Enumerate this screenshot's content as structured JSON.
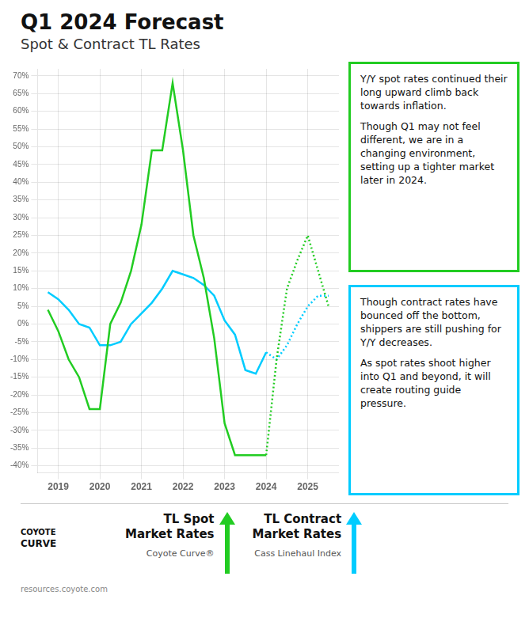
{
  "chart_data": {
    "type": "line",
    "title": "Q1 2024 Forecast",
    "subtitle": "Spot & Contract TL Rates",
    "xlim": [
      2018.5,
      2025.75
    ],
    "xticks": [
      2019,
      2020,
      2021,
      2022,
      2023,
      2024,
      2025
    ],
    "ylim": [
      -42,
      72
    ],
    "yticks": [
      {
        "value": -40,
        "label": "-40%"
      },
      {
        "value": -35,
        "label": "-35%"
      },
      {
        "value": -30,
        "label": "-30%"
      },
      {
        "value": -25,
        "label": "-25%"
      },
      {
        "value": -20,
        "label": "-20%"
      },
      {
        "value": -15,
        "label": "-15%"
      },
      {
        "value": -10,
        "label": "-10%"
      },
      {
        "value": -5,
        "label": "-5%"
      },
      {
        "value": 0,
        "label": "0%"
      },
      {
        "value": 5,
        "label": "5%"
      },
      {
        "value": 10,
        "label": "10%"
      },
      {
        "value": 15,
        "label": "15%"
      },
      {
        "value": 20,
        "label": "20%"
      },
      {
        "value": 25,
        "label": "25%"
      },
      {
        "value": 30,
        "label": "30%"
      },
      {
        "value": 35,
        "label": "35%"
      },
      {
        "value": 40,
        "label": "40%"
      },
      {
        "value": 45,
        "label": "45%"
      },
      {
        "value": 50,
        "label": "50%"
      },
      {
        "value": 55,
        "label": "55%"
      },
      {
        "value": 60,
        "label": "60%"
      },
      {
        "value": 65,
        "label": "65%"
      },
      {
        "value": 70,
        "label": "70%"
      }
    ],
    "grid": true,
    "legend": "bottom",
    "series": [
      {
        "name": "TL Spot\nMarket Rates",
        "source": "Coyote Curve®",
        "color": "#22cc22",
        "line_style": "solid",
        "x": [
          2018.75,
          2019.0,
          2019.25,
          2019.5,
          2019.75,
          2020.0,
          2020.25,
          2020.5,
          2020.75,
          2021.0,
          2021.25,
          2021.5,
          2021.75,
          2022.0,
          2022.25,
          2022.5,
          2022.75,
          2023.0,
          2023.25,
          2023.5,
          2023.75,
          2024.0
        ],
        "values": [
          4,
          -2,
          -10,
          -15,
          -24,
          -24,
          0,
          6,
          15,
          28,
          49,
          49,
          68,
          49,
          25,
          13,
          -4,
          -28,
          -37,
          -37,
          -37,
          -37
        ]
      },
      {
        "name": "TL Contract\nMarket Rates",
        "source": "Cass Linehaul Index",
        "color": "#00ccff",
        "line_style": "solid",
        "x": [
          2018.75,
          2019.0,
          2019.25,
          2019.5,
          2019.75,
          2020.0,
          2020.25,
          2020.5,
          2020.75,
          2021.0,
          2021.25,
          2021.5,
          2021.75,
          2022.0,
          2022.25,
          2022.5,
          2022.75,
          2023.0,
          2023.25,
          2023.5,
          2023.75,
          2024.0
        ],
        "values": [
          9,
          7,
          4,
          0,
          -1,
          -6,
          -6,
          -5,
          0,
          3,
          6,
          10,
          15,
          14,
          13,
          11,
          8,
          1,
          -3,
          -13,
          -14,
          -8
        ]
      },
      {
        "color": "#22cc22",
        "line_style": "dotted",
        "x": [
          2024.0,
          2024.25,
          2024.5,
          2024.75,
          2025.0,
          2025.25,
          2025.5
        ],
        "values": [
          -37,
          -10,
          10,
          18,
          25,
          15,
          5
        ]
      },
      {
        "color": "#00ccff",
        "line_style": "dotted",
        "x": [
          2024.0,
          2024.25,
          2024.5,
          2024.75,
          2025.0,
          2025.25,
          2025.5
        ],
        "values": [
          -8,
          -10,
          -6,
          0,
          5,
          8,
          8
        ]
      }
    ],
    "annotations": [
      {
        "color": "#22cc22",
        "text": [
          "Y/Y spot rates continued their long upward climb back towards inflation.",
          "Though Q1 may not feel different, we are in a changing environment, setting up a tighter market later in 2024."
        ]
      },
      {
        "color": "#00ccff",
        "text": [
          "Though contract rates have bounced off the bottom, shippers are still pushing for Y/Y decreases.",
          "As spot rates shoot higher into Q1 and beyond, it will create routing guide pressure."
        ]
      }
    ],
    "logo": [
      "COYOTE",
      "CURVE"
    ],
    "footer": "resources.coyote.com"
  }
}
